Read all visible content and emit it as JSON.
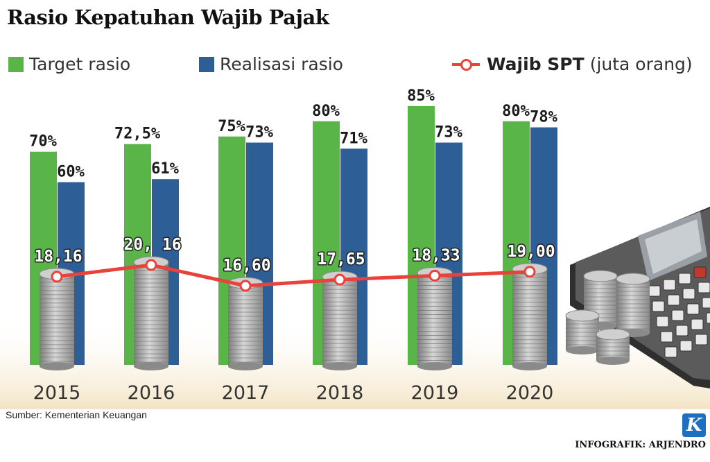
{
  "title": "Rasio Kepatuhan Wajib Pajak",
  "legend": {
    "target": "Target rasio",
    "realisasi": "Realisasi rasio",
    "spt_bold": "Wajib SPT",
    "spt_unit": "(juta orang)"
  },
  "source": "Sumber: Kementerian Keuangan",
  "credit": "INFOGRAFIK: ARJENDRO",
  "logo_letter": "K",
  "colors": {
    "target": "#5ab548",
    "realisasi": "#2d5e96",
    "spt_line": "#e8423b"
  },
  "chart_data": {
    "type": "bar",
    "categories": [
      "2015",
      "2016",
      "2017",
      "2018",
      "2019",
      "2020"
    ],
    "series": [
      {
        "name": "Target rasio",
        "values": [
          70,
          72.5,
          75,
          80,
          85,
          80
        ],
        "labels": [
          "70%",
          "72,5%",
          "75%",
          "80%",
          "85%",
          "80%"
        ]
      },
      {
        "name": "Realisasi rasio",
        "values": [
          60,
          61,
          73,
          71,
          73,
          78
        ],
        "labels": [
          "60%",
          "61%",
          "73%",
          "71%",
          "73%",
          "78%"
        ]
      }
    ],
    "line_series": {
      "name": "Wajib SPT (juta orang)",
      "values": [
        18.16,
        20.16,
        16.6,
        17.65,
        18.33,
        19.0
      ],
      "labels": [
        "18,16",
        "20, 16",
        "16,60",
        "17,65",
        "18,33",
        "19,00"
      ]
    },
    "ylim": [
      0,
      100
    ],
    "legend_position": "top"
  }
}
